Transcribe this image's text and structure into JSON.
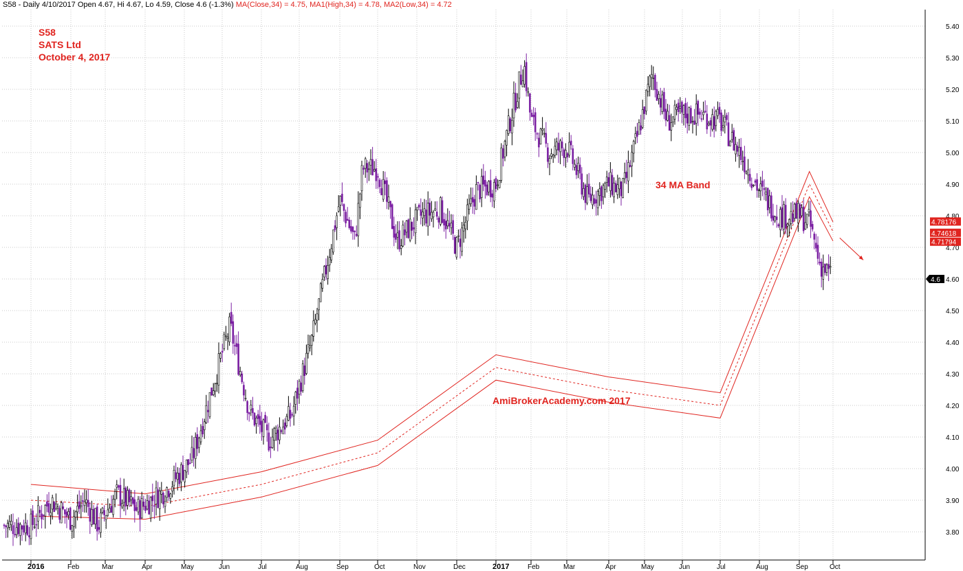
{
  "header": {
    "prefix": "S58 - Daily 4/10/2017 Open 4.67, Hi 4.67, Lo 4.59, Close 4.6 (-1.3%) ",
    "ma": "MA(Close,34) = 4.75,",
    "ma1": "MA1(High,34) = 4.78,",
    "ma2": "MA2(Low,34) = 4.72"
  },
  "annotations": {
    "symbol": "S58",
    "company": "SATS Ltd",
    "date": "October 4, 2017",
    "band_label": "34 MA Band",
    "watermark": "AmiBrokerAcademy.com  2017"
  },
  "colors": {
    "band": "#e0241f",
    "up_bar": "#000000",
    "down_bar": "#7b1fa2",
    "grid": "#c8c8c8",
    "annotation": "#e0241f",
    "price_label_bg": "#e0241f"
  },
  "chart_data": {
    "type": "candlestick",
    "y_ticks": [
      "5.40",
      "5.30",
      "5.20",
      "5.10",
      "5.00",
      "4.90",
      "4.80",
      "4.70",
      "4.60",
      "4.50",
      "4.40",
      "4.30",
      "4.20",
      "4.10",
      "4.00",
      "3.90",
      "3.80"
    ],
    "ylim": [
      3.75,
      5.42
    ],
    "x_ticks": [
      "2016",
      "Feb",
      "Mar",
      "Apr",
      "May",
      "Jun",
      "Jul",
      "Aug",
      "Sep",
      "Oct",
      "Nov",
      "Dec",
      "2017",
      "Feb",
      "Mar",
      "Apr",
      "May",
      "Jun",
      "Jul",
      "Aug",
      "Sep",
      "Oct"
    ],
    "bold_ticks": [
      "2016",
      "2017"
    ],
    "series": [
      {
        "name": "MA(Close,34)",
        "style": "dashed",
        "x": [
          0,
          3,
          6,
          9,
          12,
          15,
          18,
          20.3,
          21
        ],
        "values": [
          3.9,
          3.88,
          3.95,
          4.05,
          4.32,
          4.25,
          4.2,
          4.9,
          4.75
        ]
      },
      {
        "name": "MA1(High,34)",
        "style": "solid",
        "x": [
          0,
          3,
          6,
          9,
          12,
          15,
          18,
          20.3,
          21
        ],
        "values": [
          3.95,
          3.92,
          3.99,
          4.09,
          4.36,
          4.29,
          4.24,
          4.94,
          4.78
        ]
      },
      {
        "name": "MA2(Low,34)",
        "style": "solid",
        "x": [
          0,
          3,
          6,
          9,
          12,
          15,
          18,
          20.3,
          21
        ],
        "values": [
          3.85,
          3.84,
          3.91,
          4.01,
          4.28,
          4.21,
          4.16,
          4.86,
          4.72
        ]
      }
    ],
    "price_path": [
      [
        0,
        3.82
      ],
      [
        0.5,
        3.9
      ],
      [
        1,
        3.84
      ],
      [
        1.4,
        3.9
      ],
      [
        1.8,
        3.82
      ],
      [
        2.3,
        3.92
      ],
      [
        2.8,
        3.87
      ],
      [
        3.5,
        3.93
      ],
      [
        4.2,
        4.03
      ],
      [
        5.2,
        4.45
      ],
      [
        5.7,
        4.18
      ],
      [
        6.2,
        4.09
      ],
      [
        6.8,
        4.17
      ],
      [
        7.3,
        4.4
      ],
      [
        8.0,
        4.85
      ],
      [
        8.4,
        4.72
      ],
      [
        8.6,
        4.95
      ],
      [
        9.0,
        4.95
      ],
      [
        9.5,
        4.72
      ],
      [
        10.1,
        4.8
      ],
      [
        10.6,
        4.82
      ],
      [
        11.0,
        4.7
      ],
      [
        11.5,
        4.88
      ],
      [
        12.0,
        4.9
      ],
      [
        12.4,
        5.1
      ],
      [
        12.8,
        5.28
      ],
      [
        13.0,
        5.1
      ],
      [
        13.5,
        5.0
      ],
      [
        14.0,
        5.02
      ],
      [
        14.5,
        4.85
      ],
      [
        15.0,
        4.9
      ],
      [
        15.4,
        4.88
      ],
      [
        15.8,
        5.05
      ],
      [
        16.2,
        5.25
      ],
      [
        16.6,
        5.1
      ],
      [
        17.0,
        5.12
      ],
      [
        17.5,
        5.12
      ],
      [
        18.0,
        5.1
      ],
      [
        18.5,
        5.0
      ],
      [
        19.0,
        4.88
      ],
      [
        19.5,
        4.8
      ],
      [
        20.0,
        4.8
      ],
      [
        20.3,
        4.78
      ],
      [
        20.6,
        4.65
      ],
      [
        21.0,
        4.6
      ]
    ],
    "last_prices": [
      {
        "label": "4.78176",
        "value": 4.78176
      },
      {
        "label": "4.74618",
        "value": 4.74618
      },
      {
        "label": "4.71794",
        "value": 4.71794
      },
      {
        "label": "4.6",
        "value": 4.6
      }
    ],
    "trend_arrow": {
      "x1": 21.2,
      "y1": 4.73,
      "x2": 21.9,
      "y2": 4.66
    }
  }
}
